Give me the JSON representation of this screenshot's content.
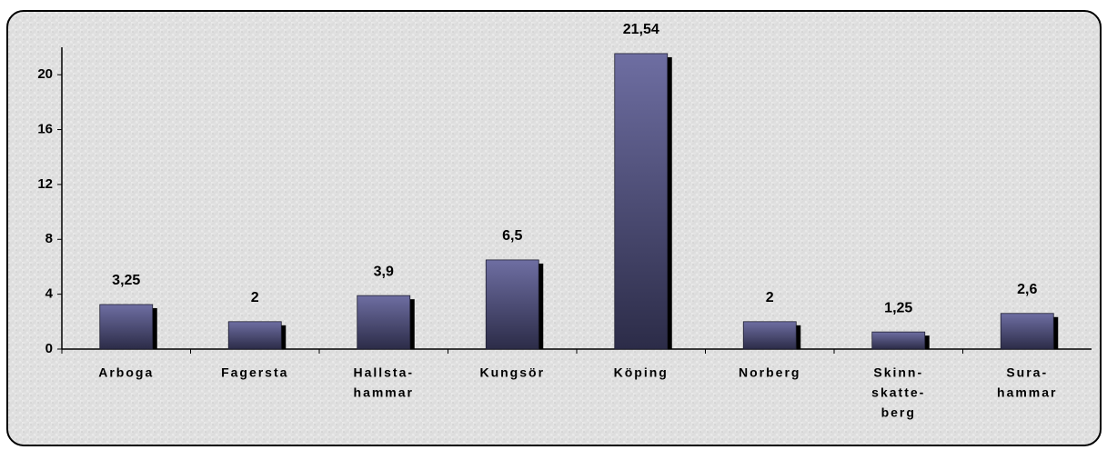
{
  "chart_data": {
    "type": "bar",
    "categories": [
      [
        "Arboga"
      ],
      [
        "Fagersta"
      ],
      [
        "Hallsta-",
        "hammar"
      ],
      [
        "Kungsör"
      ],
      [
        "Köping"
      ],
      [
        "Norberg"
      ],
      [
        "Skinn-",
        "skatte-",
        "berg"
      ],
      [
        "Sura-",
        "hammar"
      ]
    ],
    "values": [
      3.25,
      2,
      3.9,
      6.5,
      21.54,
      2,
      1.25,
      2.6
    ],
    "value_labels": [
      "3,25",
      "2",
      "3,9",
      "6,5",
      "21,54",
      "2",
      "1,25",
      "2,6"
    ],
    "color": "#5a5a8a",
    "ylim": [
      0,
      22
    ],
    "yticks": [
      0,
      4,
      8,
      12,
      16,
      20
    ],
    "grid": false
  }
}
